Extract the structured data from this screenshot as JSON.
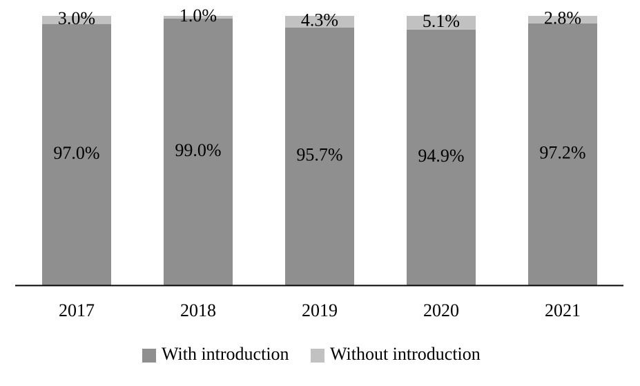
{
  "chart_data": {
    "type": "bar",
    "stacked": true,
    "stack_mode": "percent",
    "categories": [
      "2017",
      "2018",
      "2019",
      "2020",
      "2021"
    ],
    "series": [
      {
        "name": "With introduction",
        "values": [
          97.0,
          99.0,
          95.7,
          94.9,
          97.2
        ],
        "labels": [
          "97.0%",
          "99.0%",
          "95.7%",
          "94.9%",
          "97.2%"
        ],
        "color": "#8f8f8f"
      },
      {
        "name": "Without introduction",
        "values": [
          3.0,
          1.0,
          4.3,
          5.1,
          2.8
        ],
        "labels": [
          "3.0%",
          "1.0%",
          "4.3%",
          "5.1%",
          "2.8%"
        ],
        "color": "#c1c1c1"
      }
    ],
    "title": "",
    "xlabel": "",
    "ylabel": "",
    "grid": false,
    "legend_position": "bottom"
  }
}
